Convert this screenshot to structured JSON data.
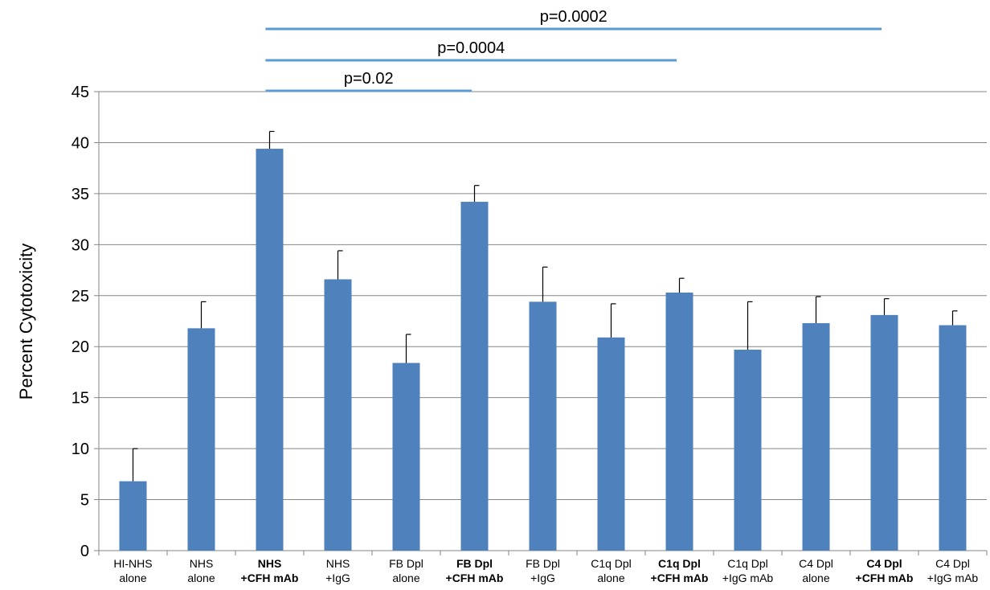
{
  "chart_data": {
    "type": "bar",
    "ylabel": "Percent Cytotoxicity",
    "ylim": [
      0,
      45
    ],
    "yticks": [
      0,
      5,
      10,
      15,
      20,
      25,
      30,
      35,
      40,
      45
    ],
    "grid": true,
    "categories": [
      {
        "lines": [
          "HI-NHS",
          "alone"
        ],
        "bold": false
      },
      {
        "lines": [
          "NHS",
          "alone"
        ],
        "bold": false
      },
      {
        "lines": [
          "NHS",
          "+CFH mAb"
        ],
        "bold": true
      },
      {
        "lines": [
          "NHS",
          "+IgG"
        ],
        "bold": false
      },
      {
        "lines": [
          "FB Dpl",
          "alone"
        ],
        "bold": false
      },
      {
        "lines": [
          "FB Dpl",
          "+CFH mAb"
        ],
        "bold": true
      },
      {
        "lines": [
          "FB Dpl",
          "+IgG"
        ],
        "bold": false
      },
      {
        "lines": [
          "C1q Dpl",
          "alone"
        ],
        "bold": false
      },
      {
        "lines": [
          "C1q Dpl",
          "+CFH mAb"
        ],
        "bold": true
      },
      {
        "lines": [
          "C1q Dpl",
          "+IgG mAb"
        ],
        "bold": false
      },
      {
        "lines": [
          "C4 Dpl",
          "alone"
        ],
        "bold": false
      },
      {
        "lines": [
          "C4 Dpl",
          "+CFH mAb"
        ],
        "bold": true
      },
      {
        "lines": [
          "C4 Dpl",
          "+IgG mAb"
        ],
        "bold": false
      }
    ],
    "values": [
      6.8,
      21.8,
      39.4,
      26.6,
      18.4,
      34.2,
      24.4,
      20.9,
      25.3,
      19.7,
      22.3,
      23.1,
      22.1
    ],
    "errors": [
      3.2,
      2.6,
      1.7,
      2.8,
      2.8,
      1.6,
      3.4,
      3.3,
      1.4,
      4.7,
      2.6,
      1.6,
      1.4
    ],
    "bar_color": "#4f81bd",
    "annotations": [
      {
        "label": "p=0.02",
        "from": 2,
        "to": 5
      },
      {
        "label": "p=0.0004",
        "from": 2,
        "to": 8
      },
      {
        "label": "p=0.0002",
        "from": 2,
        "to": 11
      }
    ],
    "annotation_color": "#5b9bd5"
  }
}
